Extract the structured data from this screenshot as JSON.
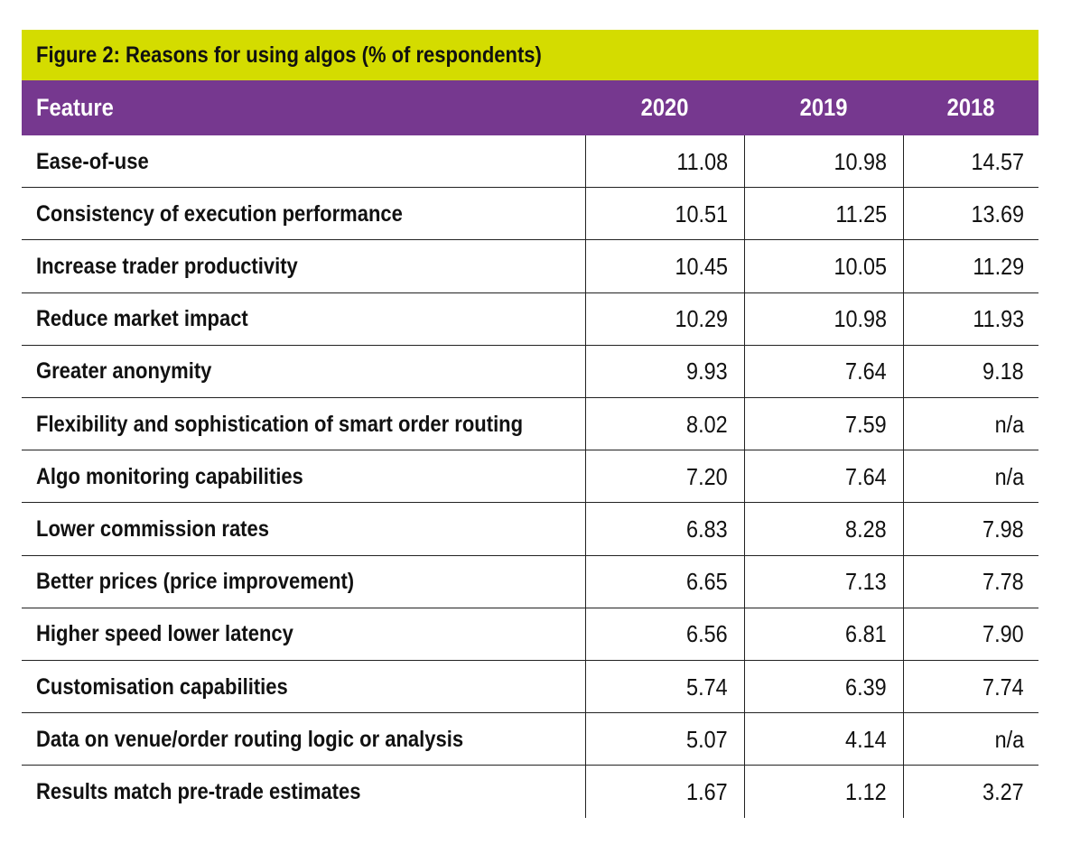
{
  "colors": {
    "title_background": "#d4dc00",
    "header_background": "#76388f"
  },
  "title": "Figure 2: Reasons for using algos (% of respondents)",
  "header": {
    "feature": "Feature",
    "years": [
      "2020",
      "2019",
      "2018"
    ]
  },
  "rows": [
    {
      "feature": "Ease-of-use",
      "values": [
        "11.08",
        "10.98",
        "14.57"
      ]
    },
    {
      "feature": "Consistency of execution performance",
      "values": [
        "10.51",
        "11.25",
        "13.69"
      ]
    },
    {
      "feature": "Increase trader productivity",
      "values": [
        "10.45",
        "10.05",
        "11.29"
      ]
    },
    {
      "feature": "Reduce market impact",
      "values": [
        "10.29",
        "10.98",
        "11.93"
      ]
    },
    {
      "feature": "Greater anonymity",
      "values": [
        "9.93",
        "7.64",
        "9.18"
      ]
    },
    {
      "feature": "Flexibility and sophistication of smart order routing",
      "values": [
        "8.02",
        "7.59",
        "n/a"
      ]
    },
    {
      "feature": "Algo monitoring capabilities",
      "values": [
        "7.20",
        "7.64",
        "n/a"
      ]
    },
    {
      "feature": "Lower commission rates",
      "values": [
        "6.83",
        "8.28",
        "7.98"
      ]
    },
    {
      "feature": "Better prices (price improvement)",
      "values": [
        "6.65",
        "7.13",
        "7.78"
      ]
    },
    {
      "feature": "Higher speed lower latency",
      "values": [
        "6.56",
        "6.81",
        "7.90"
      ]
    },
    {
      "feature": "Customisation capabilities",
      "values": [
        "5.74",
        "6.39",
        "7.74"
      ]
    },
    {
      "feature": "Data on venue/order routing logic or analysis",
      "values": [
        "5.07",
        "4.14",
        "n/a"
      ]
    },
    {
      "feature": "Results match pre-trade estimates",
      "values": [
        "1.67",
        "1.12",
        "3.27"
      ]
    }
  ]
}
